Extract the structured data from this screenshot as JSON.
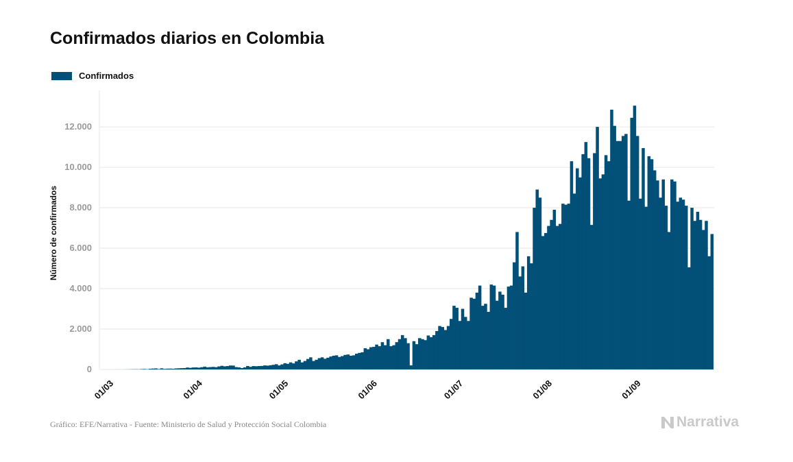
{
  "title": "Confirmados diarios en Colombia",
  "legend": {
    "label": "Confirmados",
    "color": "#024f78"
  },
  "source": "Gráfico: EFE/Narrativa - Fuente: Ministerio de Salud y Protección Social Colombia",
  "brand": {
    "name": "Narrativa",
    "icon": "narrativa-logo-icon"
  },
  "chart_data": {
    "type": "bar",
    "ylabel": "Número de confirmados",
    "ylim": [
      0,
      13800
    ],
    "yticks": [
      0,
      2000,
      4000,
      6000,
      8000,
      10000,
      12000
    ],
    "ytick_labels": [
      "0",
      "2.000",
      "4.000",
      "6.000",
      "8.000",
      "10.000",
      "12.000"
    ],
    "grid": true,
    "legend_position": "top-left",
    "color": "#024f78",
    "start_date": "2020-03-01",
    "xticks": [
      "01/03",
      "01/04",
      "01/05",
      "01/06",
      "01/07",
      "01/08",
      "01/09"
    ],
    "xtick_days": [
      0,
      31,
      61,
      92,
      122,
      153,
      184
    ],
    "series": [
      {
        "name": "Confirmados",
        "values": [
          0,
          0,
          0,
          0,
          0,
          1,
          0,
          2,
          3,
          6,
          9,
          11,
          8,
          19,
          24,
          13,
          32,
          43,
          51,
          23,
          55,
          30,
          39,
          42,
          34,
          50,
          58,
          64,
          70,
          96,
          79,
          98,
          103,
          90,
          112,
          140,
          108,
          118,
          127,
          113,
          150,
          180,
          156,
          167,
          196,
          191,
          117,
          103,
          70,
          105,
          172,
          130,
          168,
          160,
          170,
          175,
          200,
          190,
          210,
          230,
          260,
          200,
          250,
          310,
          280,
          350,
          300,
          400,
          480,
          350,
          420,
          520,
          600,
          420,
          480,
          560,
          600,
          530,
          580,
          640,
          680,
          700,
          620,
          660,
          720,
          740,
          680,
          700,
          780,
          820,
          850,
          1050,
          1000,
          1100,
          1120,
          1230,
          1150,
          1350,
          1200,
          1500,
          1150,
          1200,
          1350,
          1500,
          1700,
          1550,
          1300,
          200,
          1400,
          1250,
          1550,
          1500,
          1450,
          1680,
          1600,
          1700,
          1900,
          2150,
          2100,
          1950,
          2150,
          2500,
          3150,
          3050,
          2400,
          3000,
          2600,
          2400,
          3550,
          3500,
          3800,
          4150,
          3150,
          3250,
          2850,
          4200,
          4150,
          3400,
          3850,
          3700,
          3050,
          4100,
          4150,
          5300,
          6800,
          4600,
          5100,
          3800,
          5600,
          5250,
          8000,
          8900,
          8500,
          6600,
          6750,
          7100,
          7400,
          7900,
          7100,
          7200,
          8200,
          8150,
          8200,
          10300,
          8700,
          9950,
          9500,
          10650,
          11250,
          10450,
          7150,
          10700,
          12000,
          9450,
          9650,
          10600,
          10300,
          12850,
          12050,
          11300,
          11300,
          11550,
          11650,
          8350,
          12450,
          13050,
          11550,
          8450,
          10950,
          8050,
          10550,
          10400,
          9850,
          9350,
          8500,
          9400,
          8100,
          6800,
          9400,
          9300,
          8300,
          8500,
          8400,
          8100,
          5050,
          8000,
          7350,
          7800,
          7400,
          6900,
          7350,
          5600,
          6700
        ]
      }
    ]
  }
}
